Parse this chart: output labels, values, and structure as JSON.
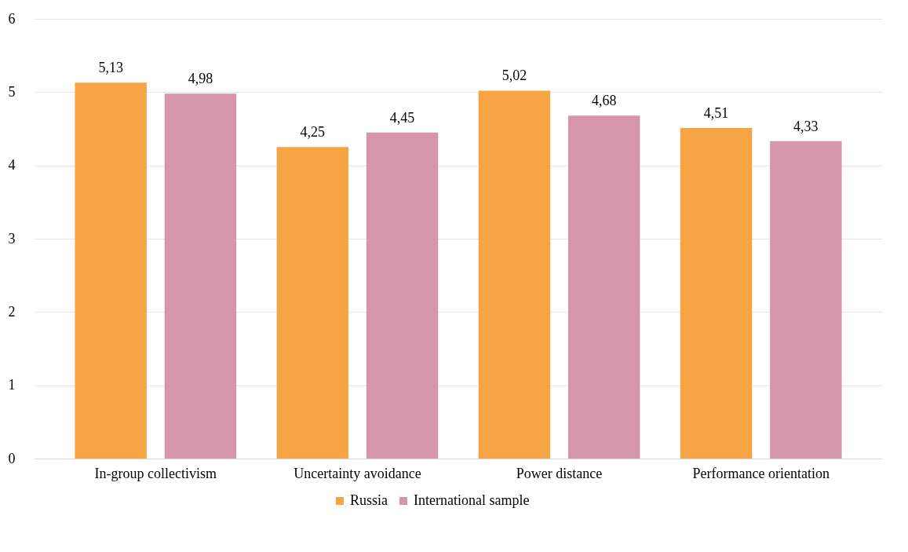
{
  "chart_data": {
    "type": "bar",
    "categories": [
      "In-group collectivism",
      "Uncertainty avoidance",
      "Power distance",
      "Performance orientation"
    ],
    "series": [
      {
        "name": "Russia",
        "color": "#f7a445",
        "values": [
          5.13,
          4.25,
          5.02,
          4.51
        ],
        "value_labels": [
          "5,13",
          "4,25",
          "5,02",
          "4,51"
        ]
      },
      {
        "name": "International sample",
        "color": "#d595ab",
        "values": [
          4.98,
          4.45,
          4.68,
          4.33
        ],
        "value_labels": [
          "4,98",
          "4,45",
          "4,68",
          "4,33"
        ]
      }
    ],
    "ylim": [
      0,
      6
    ],
    "yticks": [
      0,
      1,
      2,
      3,
      4,
      5,
      6
    ],
    "grid": "y",
    "legend": "bottom"
  }
}
